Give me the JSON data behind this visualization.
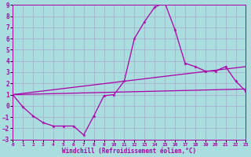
{
  "x": [
    0,
    1,
    2,
    3,
    4,
    5,
    6,
    7,
    8,
    9,
    10,
    11,
    12,
    13,
    14,
    15,
    16,
    17,
    18,
    19,
    20,
    21,
    22,
    23
  ],
  "main_line": [
    1,
    -0.1,
    -0.9,
    -1.5,
    -1.8,
    -1.8,
    -1.8,
    -2.6,
    -0.9,
    0.9,
    1.0,
    2.2,
    6.0,
    7.5,
    8.8,
    9.2,
    6.8,
    3.8,
    3.5,
    3.1,
    3.1,
    3.5,
    2.2,
    1.3
  ],
  "upper_line_x": [
    0,
    23
  ],
  "upper_line_y": [
    1.0,
    3.5
  ],
  "lower_line_x": [
    0,
    23
  ],
  "lower_line_y": [
    1.0,
    1.5
  ],
  "line_color": "#aa00aa",
  "bg_color": "#aadddd",
  "grid_color": "#aaaacc",
  "xlabel": "Windchill (Refroidissement éolien,°C)",
  "ylim": [
    -3,
    9
  ],
  "xlim": [
    0,
    23
  ],
  "yticks": [
    -3,
    -2,
    -1,
    0,
    1,
    2,
    3,
    4,
    5,
    6,
    7,
    8,
    9
  ],
  "xticks": [
    0,
    1,
    2,
    3,
    4,
    5,
    6,
    7,
    8,
    9,
    10,
    11,
    12,
    13,
    14,
    15,
    16,
    17,
    18,
    19,
    20,
    21,
    22,
    23
  ]
}
